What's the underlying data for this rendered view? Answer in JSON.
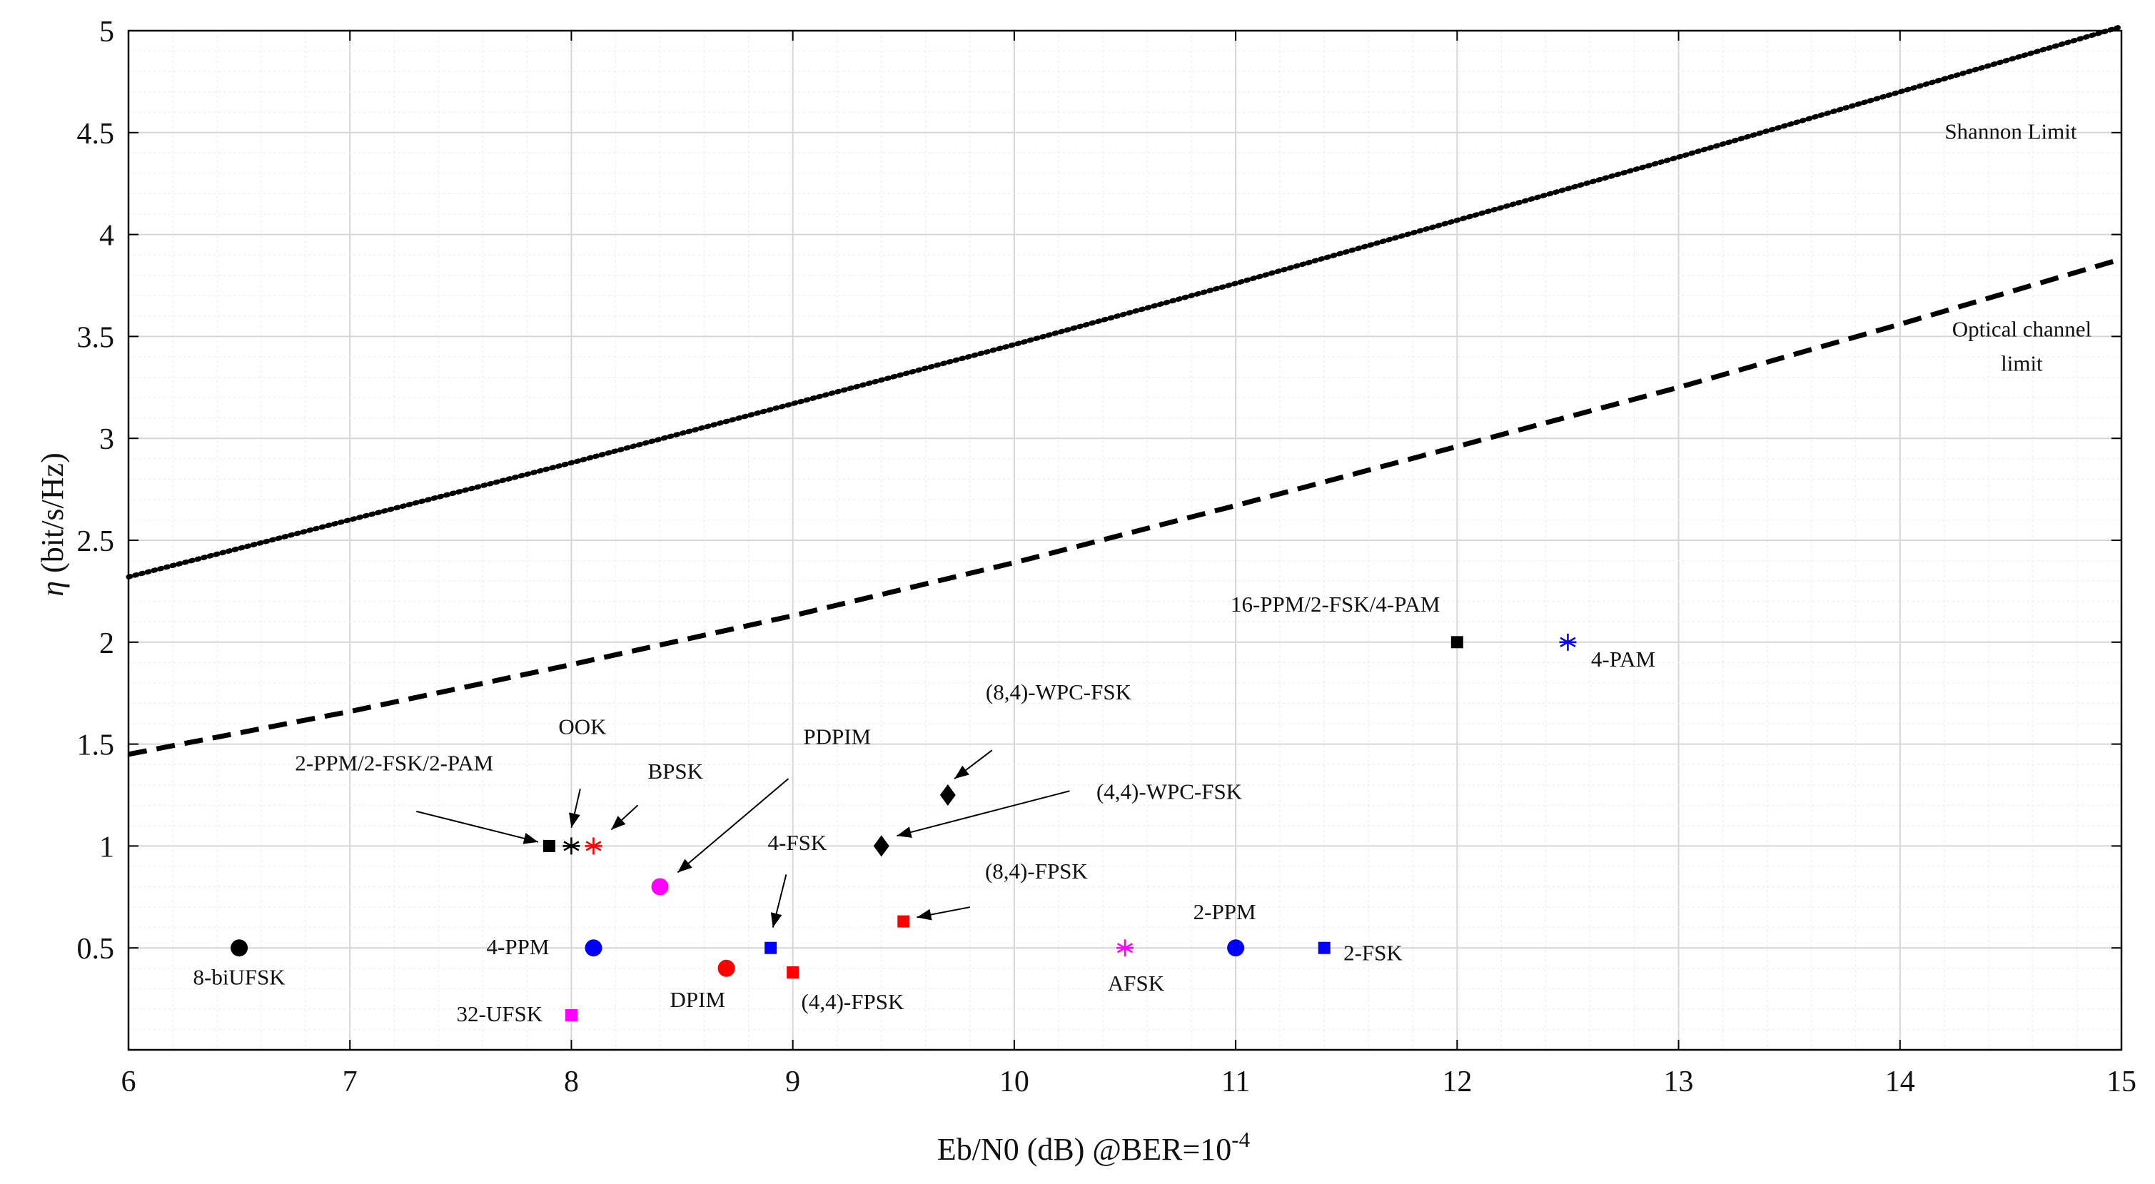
{
  "chart_data": {
    "type": "scatter",
    "title": "",
    "xlabel": "Eb/N0 (dB) @BER=10",
    "xlabel_exponent": "-4",
    "ylabel_symbol": "η",
    "ylabel": " (bit/s/Hz)",
    "xlim": [
      6,
      15
    ],
    "ylim": [
      0,
      5
    ],
    "xticks": [
      "6",
      "7",
      "8",
      "9",
      "10",
      "11",
      "12",
      "13",
      "14",
      "15"
    ],
    "yticks": [
      "0.5",
      "1",
      "1.5",
      "2",
      "2.5",
      "3",
      "3.5",
      "4",
      "4.5",
      "5"
    ],
    "grid": "major and minor",
    "curves": [
      {
        "name": "Shannon Limit",
        "style": "dotted",
        "label_lines": [
          "Shannon Limit"
        ],
        "x": [
          6,
          7,
          8,
          9,
          10,
          11,
          12,
          13,
          14,
          15
        ],
        "y": [
          2.32,
          2.6,
          2.88,
          3.17,
          3.46,
          3.76,
          4.07,
          4.38,
          4.7,
          5.02
        ]
      },
      {
        "name": "Optical channel limit",
        "style": "dashed",
        "label_lines": [
          "Optical channel",
          "limit"
        ],
        "x": [
          6,
          7,
          8,
          9,
          10,
          11,
          12,
          13,
          14,
          15
        ],
        "y": [
          1.45,
          1.66,
          1.89,
          2.13,
          2.39,
          2.67,
          2.96,
          3.25,
          3.56,
          3.88
        ]
      }
    ],
    "points": [
      {
        "label": "8-biUFSK",
        "x": 6.5,
        "y": 0.5,
        "marker": "circle",
        "color": "#000000"
      },
      {
        "label": "2-PPM/2-FSK/2-PAM",
        "x": 7.9,
        "y": 1.0,
        "marker": "square",
        "color": "#000000"
      },
      {
        "label": "OOK",
        "x": 8.0,
        "y": 1.0,
        "marker": "asterisk",
        "color": "#000000"
      },
      {
        "label": "BPSK",
        "x": 8.1,
        "y": 1.0,
        "marker": "asterisk",
        "color": "#ff0000"
      },
      {
        "label": "PDPIM",
        "x": 8.4,
        "y": 0.8,
        "marker": "circle",
        "color": "#ff00ff"
      },
      {
        "label": "4-PPM",
        "x": 8.1,
        "y": 0.5,
        "marker": "circle",
        "color": "#0000ff"
      },
      {
        "label": "32-UFSK",
        "x": 8.0,
        "y": 0.17,
        "marker": "square",
        "color": "#ff00ff"
      },
      {
        "label": "DPIM",
        "x": 8.7,
        "y": 0.4,
        "marker": "circle",
        "color": "#ff0000"
      },
      {
        "label": "4-FSK",
        "x": 8.9,
        "y": 0.5,
        "marker": "square",
        "color": "#0000ff"
      },
      {
        "label": "(4,4)-FPSK",
        "x": 9.0,
        "y": 0.38,
        "marker": "square",
        "color": "#ff0000"
      },
      {
        "label": "(4,4)-WPC-FSK",
        "x": 9.4,
        "y": 1.0,
        "marker": "diamond",
        "color": "#000000"
      },
      {
        "label": "(8,4)-WPC-FSK",
        "x": 9.7,
        "y": 1.25,
        "marker": "diamond",
        "color": "#000000"
      },
      {
        "label": "(8,4)-FPSK",
        "x": 9.5,
        "y": 0.63,
        "marker": "square",
        "color": "#ff0000"
      },
      {
        "label": "AFSK",
        "x": 10.5,
        "y": 0.5,
        "marker": "asterisk",
        "color": "#ff00ff"
      },
      {
        "label": "2-PPM",
        "x": 11.0,
        "y": 0.5,
        "marker": "circle",
        "color": "#0000ff"
      },
      {
        "label": "2-FSK",
        "x": 11.4,
        "y": 0.5,
        "marker": "square",
        "color": "#0000ff"
      },
      {
        "label": "16-PPM/2-FSK/4-PAM",
        "x": 12.0,
        "y": 2.0,
        "marker": "square",
        "color": "#000000"
      },
      {
        "label": "4-PAM",
        "x": 12.5,
        "y": 2.0,
        "marker": "asterisk",
        "color": "#0000ff"
      }
    ]
  }
}
